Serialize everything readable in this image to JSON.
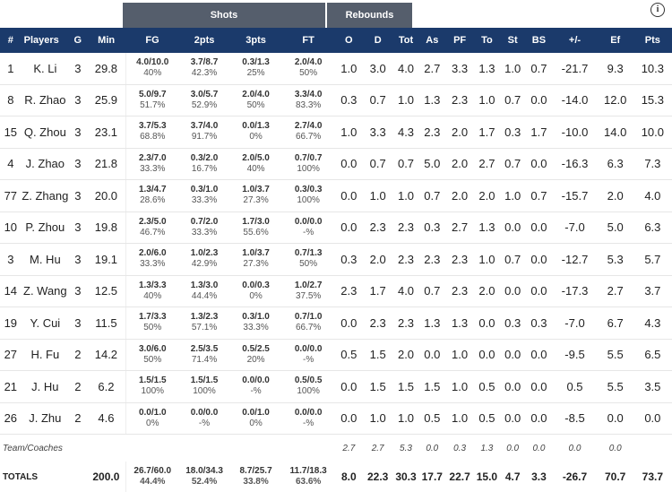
{
  "groups": {
    "shots": "Shots",
    "rebounds": "Rebounds"
  },
  "info_icon": "i",
  "headers": [
    "#",
    "Players",
    "G",
    "Min",
    "FG",
    "2pts",
    "3pts",
    "FT",
    "O",
    "D",
    "Tot",
    "As",
    "PF",
    "To",
    "St",
    "BS",
    "+/-",
    "Ef",
    "Pts"
  ],
  "players": [
    {
      "num": "1",
      "name": "K. Li",
      "g": "3",
      "min": "29.8",
      "fg": "4.0/10.0",
      "fg_pct": "40%",
      "p2": "3.7/8.7",
      "p2_pct": "42.3%",
      "p3": "0.3/1.3",
      "p3_pct": "25%",
      "ft": "2.0/4.0",
      "ft_pct": "50%",
      "o": "1.0",
      "d": "3.0",
      "tot": "4.0",
      "as": "2.7",
      "pf": "3.3",
      "to": "1.3",
      "st": "1.0",
      "bs": "0.7",
      "pm": "-21.7",
      "ef": "9.3",
      "pts": "10.3"
    },
    {
      "num": "8",
      "name": "R. Zhao",
      "g": "3",
      "min": "25.9",
      "fg": "5.0/9.7",
      "fg_pct": "51.7%",
      "p2": "3.0/5.7",
      "p2_pct": "52.9%",
      "p3": "2.0/4.0",
      "p3_pct": "50%",
      "ft": "3.3/4.0",
      "ft_pct": "83.3%",
      "o": "0.3",
      "d": "0.7",
      "tot": "1.0",
      "as": "1.3",
      "pf": "2.3",
      "to": "1.0",
      "st": "0.7",
      "bs": "0.0",
      "pm": "-14.0",
      "ef": "12.0",
      "pts": "15.3"
    },
    {
      "num": "15",
      "name": "Q. Zhou",
      "g": "3",
      "min": "23.1",
      "fg": "3.7/5.3",
      "fg_pct": "68.8%",
      "p2": "3.7/4.0",
      "p2_pct": "91.7%",
      "p3": "0.0/1.3",
      "p3_pct": "0%",
      "ft": "2.7/4.0",
      "ft_pct": "66.7%",
      "o": "1.0",
      "d": "3.3",
      "tot": "4.3",
      "as": "2.3",
      "pf": "2.0",
      "to": "1.7",
      "st": "0.3",
      "bs": "1.7",
      "pm": "-10.0",
      "ef": "14.0",
      "pts": "10.0"
    },
    {
      "num": "4",
      "name": "J. Zhao",
      "g": "3",
      "min": "21.8",
      "fg": "2.3/7.0",
      "fg_pct": "33.3%",
      "p2": "0.3/2.0",
      "p2_pct": "16.7%",
      "p3": "2.0/5.0",
      "p3_pct": "40%",
      "ft": "0.7/0.7",
      "ft_pct": "100%",
      "o": "0.0",
      "d": "0.7",
      "tot": "0.7",
      "as": "5.0",
      "pf": "2.0",
      "to": "2.7",
      "st": "0.7",
      "bs": "0.0",
      "pm": "-16.3",
      "ef": "6.3",
      "pts": "7.3"
    },
    {
      "num": "77",
      "name": "Z. Zhang",
      "g": "3",
      "min": "20.0",
      "fg": "1.3/4.7",
      "fg_pct": "28.6%",
      "p2": "0.3/1.0",
      "p2_pct": "33.3%",
      "p3": "1.0/3.7",
      "p3_pct": "27.3%",
      "ft": "0.3/0.3",
      "ft_pct": "100%",
      "o": "0.0",
      "d": "1.0",
      "tot": "1.0",
      "as": "0.7",
      "pf": "2.0",
      "to": "2.0",
      "st": "1.0",
      "bs": "0.7",
      "pm": "-15.7",
      "ef": "2.0",
      "pts": "4.0"
    },
    {
      "num": "10",
      "name": "P. Zhou",
      "g": "3",
      "min": "19.8",
      "fg": "2.3/5.0",
      "fg_pct": "46.7%",
      "p2": "0.7/2.0",
      "p2_pct": "33.3%",
      "p3": "1.7/3.0",
      "p3_pct": "55.6%",
      "ft": "0.0/0.0",
      "ft_pct": "-%",
      "o": "0.0",
      "d": "2.3",
      "tot": "2.3",
      "as": "0.3",
      "pf": "2.7",
      "to": "1.3",
      "st": "0.0",
      "bs": "0.0",
      "pm": "-7.0",
      "ef": "5.0",
      "pts": "6.3"
    },
    {
      "num": "3",
      "name": "M. Hu",
      "g": "3",
      "min": "19.1",
      "fg": "2.0/6.0",
      "fg_pct": "33.3%",
      "p2": "1.0/2.3",
      "p2_pct": "42.9%",
      "p3": "1.0/3.7",
      "p3_pct": "27.3%",
      "ft": "0.7/1.3",
      "ft_pct": "50%",
      "o": "0.3",
      "d": "2.0",
      "tot": "2.3",
      "as": "2.3",
      "pf": "2.3",
      "to": "1.0",
      "st": "0.7",
      "bs": "0.0",
      "pm": "-12.7",
      "ef": "5.3",
      "pts": "5.7"
    },
    {
      "num": "14",
      "name": "Z. Wang",
      "g": "3",
      "min": "12.5",
      "fg": "1.3/3.3",
      "fg_pct": "40%",
      "p2": "1.3/3.0",
      "p2_pct": "44.4%",
      "p3": "0.0/0.3",
      "p3_pct": "0%",
      "ft": "1.0/2.7",
      "ft_pct": "37.5%",
      "o": "2.3",
      "d": "1.7",
      "tot": "4.0",
      "as": "0.7",
      "pf": "2.3",
      "to": "2.0",
      "st": "0.0",
      "bs": "0.0",
      "pm": "-17.3",
      "ef": "2.7",
      "pts": "3.7"
    },
    {
      "num": "19",
      "name": "Y. Cui",
      "g": "3",
      "min": "11.5",
      "fg": "1.7/3.3",
      "fg_pct": "50%",
      "p2": "1.3/2.3",
      "p2_pct": "57.1%",
      "p3": "0.3/1.0",
      "p3_pct": "33.3%",
      "ft": "0.7/1.0",
      "ft_pct": "66.7%",
      "o": "0.0",
      "d": "2.3",
      "tot": "2.3",
      "as": "1.3",
      "pf": "1.3",
      "to": "0.0",
      "st": "0.3",
      "bs": "0.3",
      "pm": "-7.0",
      "ef": "6.7",
      "pts": "4.3"
    },
    {
      "num": "27",
      "name": "H. Fu",
      "g": "2",
      "min": "14.2",
      "fg": "3.0/6.0",
      "fg_pct": "50%",
      "p2": "2.5/3.5",
      "p2_pct": "71.4%",
      "p3": "0.5/2.5",
      "p3_pct": "20%",
      "ft": "0.0/0.0",
      "ft_pct": "-%",
      "o": "0.5",
      "d": "1.5",
      "tot": "2.0",
      "as": "0.0",
      "pf": "1.0",
      "to": "0.0",
      "st": "0.0",
      "bs": "0.0",
      "pm": "-9.5",
      "ef": "5.5",
      "pts": "6.5"
    },
    {
      "num": "21",
      "name": "J. Hu",
      "g": "2",
      "min": "6.2",
      "fg": "1.5/1.5",
      "fg_pct": "100%",
      "p2": "1.5/1.5",
      "p2_pct": "100%",
      "p3": "0.0/0.0",
      "p3_pct": "-%",
      "ft": "0.5/0.5",
      "ft_pct": "100%",
      "o": "0.0",
      "d": "1.5",
      "tot": "1.5",
      "as": "1.5",
      "pf": "1.0",
      "to": "0.5",
      "st": "0.0",
      "bs": "0.0",
      "pm": "0.5",
      "ef": "5.5",
      "pts": "3.5"
    },
    {
      "num": "26",
      "name": "J. Zhu",
      "g": "2",
      "min": "4.6",
      "fg": "0.0/1.0",
      "fg_pct": "0%",
      "p2": "0.0/0.0",
      "p2_pct": "-%",
      "p3": "0.0/1.0",
      "p3_pct": "0%",
      "ft": "0.0/0.0",
      "ft_pct": "-%",
      "o": "0.0",
      "d": "1.0",
      "tot": "1.0",
      "as": "0.5",
      "pf": "1.0",
      "to": "0.5",
      "st": "0.0",
      "bs": "0.0",
      "pm": "-8.5",
      "ef": "0.0",
      "pts": "0.0"
    }
  ],
  "team": {
    "label": "Team/Coaches",
    "o": "2.7",
    "d": "2.7",
    "tot": "5.3",
    "as": "0.0",
    "pf": "0.3",
    "to": "1.3",
    "st": "0.0",
    "bs": "0.0",
    "pm": "0.0",
    "ef": "0.0"
  },
  "totals": {
    "label": "TOTALS",
    "min": "200.0",
    "fg": "26.7/60.0",
    "fg_pct": "44.4%",
    "p2": "18.0/34.3",
    "p2_pct": "52.4%",
    "p3": "8.7/25.7",
    "p3_pct": "33.8%",
    "ft": "11.7/18.3",
    "ft_pct": "63.6%",
    "o": "8.0",
    "d": "22.3",
    "tot": "30.3",
    "as": "17.7",
    "pf": "22.7",
    "to": "15.0",
    "st": "4.7",
    "bs": "3.3",
    "pm": "-26.7",
    "ef": "70.7",
    "pts": "73.7"
  }
}
